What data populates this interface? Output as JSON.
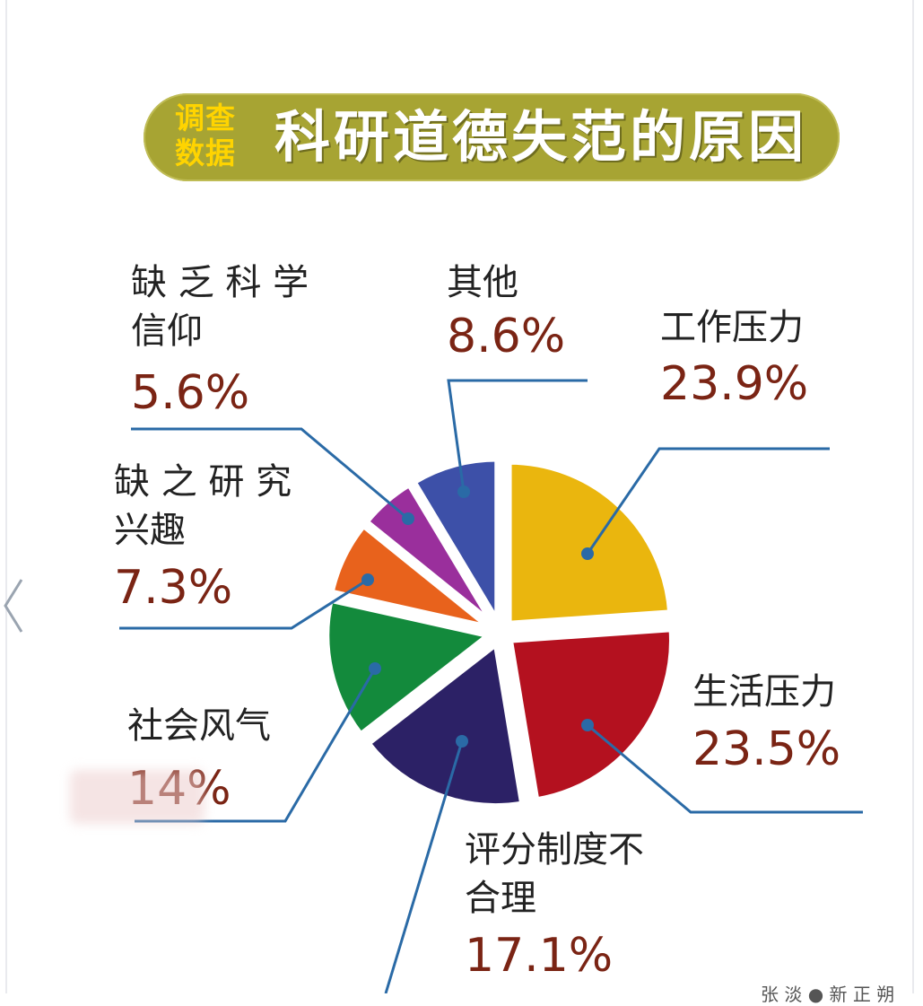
{
  "banner": {
    "badge_line1": "调查",
    "badge_line2": "数据",
    "title": "科研道德失范的原因"
  },
  "credit": "张 淡 ● 新 正 朔",
  "chart_data": {
    "type": "pie",
    "title": "科研道德失范的原因",
    "slices": [
      {
        "name_lines": [
          "工作压力"
        ],
        "label": "23.9%",
        "value": 23.9,
        "color": "#eab60e"
      },
      {
        "name_lines": [
          "生活压力"
        ],
        "label": "23.5%",
        "value": 23.5,
        "color": "#b4111f"
      },
      {
        "name_lines": [
          "评分制度不",
          "合理"
        ],
        "label": "17.1%",
        "value": 17.1,
        "color": "#2c2166"
      },
      {
        "name_lines": [
          "社会风气"
        ],
        "label": "14%",
        "value": 14,
        "color": "#138a3c"
      },
      {
        "name_lines": [
          "缺 之 研 究",
          "兴趣"
        ],
        "label": "7.3%",
        "value": 7.3,
        "color": "#e8621c"
      },
      {
        "name_lines": [
          "缺 乏 科 学",
          "信仰"
        ],
        "label": "5.6%",
        "value": 5.6,
        "color": "#9a2f9c"
      },
      {
        "name_lines": [
          "其他"
        ],
        "label": "8.6%",
        "value": 8.6,
        "color": "#3d50a8"
      }
    ],
    "legend": "none"
  }
}
